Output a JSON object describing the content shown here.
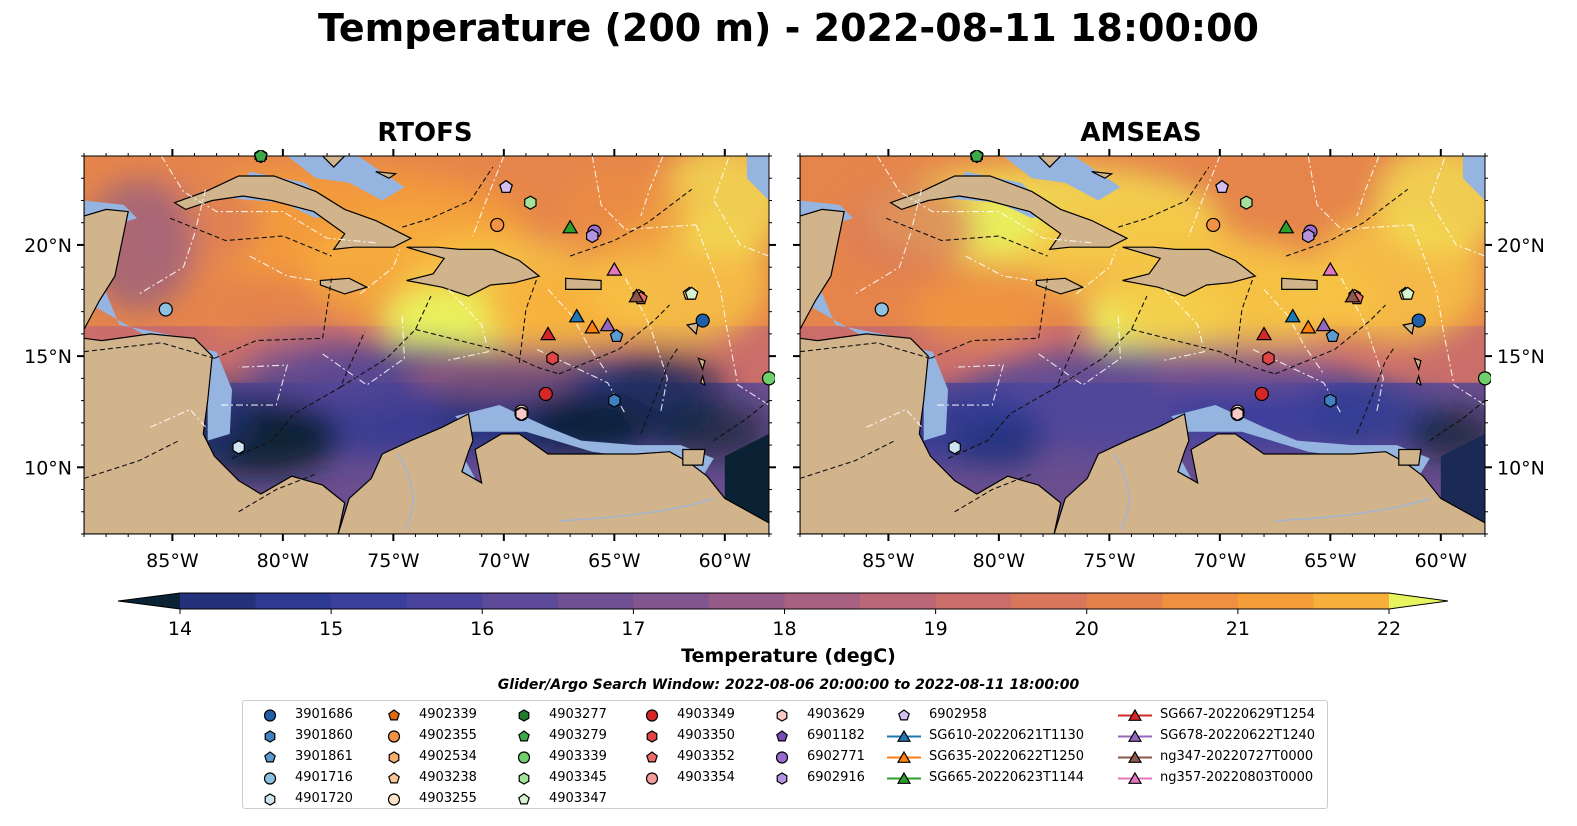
{
  "title": "Temperature (200 m) - 2022-08-11 18:00:00",
  "panels": [
    {
      "title": "RTOFS"
    },
    {
      "title": "AMSEAS"
    }
  ],
  "axes": {
    "lon_ticks": [
      "85°W",
      "80°W",
      "75°W",
      "70°W",
      "65°W",
      "60°W"
    ],
    "lat_ticks": [
      "20°N",
      "15°N",
      "10°N"
    ],
    "lon_range": [
      -89,
      -58
    ],
    "lat_range": [
      7,
      24
    ]
  },
  "colorbar": {
    "label": "Temperature (degC)",
    "ticks": [
      "14",
      "15",
      "16",
      "17",
      "18",
      "19",
      "20",
      "21",
      "22"
    ],
    "range": [
      14,
      22
    ],
    "colors": [
      "#0a2233",
      "#1a2a54",
      "#23327a",
      "#2e3a92",
      "#3a3f9c",
      "#4a449c",
      "#5d4a98",
      "#704f93",
      "#83558e",
      "#965b88",
      "#a96181",
      "#bb6777",
      "#cb6e6a",
      "#d9775c",
      "#e5824c",
      "#ef8f3f",
      "#f59e39",
      "#f8b03c",
      "#f7c545",
      "#f2dd52",
      "#e8f45f"
    ]
  },
  "colors": {
    "land": "#d2b48c",
    "shallow_water": "#96b4e0",
    "deep_water": "#0a2233"
  },
  "legend": {
    "title": "Glider/Argo Search Window: 2022-08-06 20:00:00 to 2022-08-11 18:00:00",
    "columns": [
      [
        {
          "label": "3901686",
          "marker": "circle",
          "color": "#1f5fa8"
        },
        {
          "label": "3901860",
          "marker": "hexagon",
          "color": "#3f80c0"
        },
        {
          "label": "3901861",
          "marker": "pentagon",
          "color": "#5b9bd3"
        },
        {
          "label": "4901716",
          "marker": "circle",
          "color": "#8fc1e3"
        },
        {
          "label": "4901720",
          "marker": "hexagon",
          "color": "#cde4f3"
        }
      ],
      [
        {
          "label": "4902339",
          "marker": "pentagon",
          "color": "#e3690f"
        },
        {
          "label": "4902355",
          "marker": "circle",
          "color": "#f39245"
        },
        {
          "label": "4902534",
          "marker": "hexagon",
          "color": "#f8ad6d"
        },
        {
          "label": "4903238",
          "marker": "pentagon",
          "color": "#fbc895"
        },
        {
          "label": "4903255",
          "marker": "circle",
          "color": "#fde2c6"
        }
      ],
      [
        {
          "label": "4903277",
          "marker": "hexagon",
          "color": "#1e7b2f"
        },
        {
          "label": "4903279",
          "marker": "pentagon",
          "color": "#3da94a"
        },
        {
          "label": "4903339",
          "marker": "circle",
          "color": "#6fcf6a"
        },
        {
          "label": "4903345",
          "marker": "hexagon",
          "color": "#a4e29c"
        },
        {
          "label": "4903347",
          "marker": "pentagon",
          "color": "#d5f3cf"
        }
      ],
      [
        {
          "label": "4903349",
          "marker": "circle",
          "color": "#d62728"
        },
        {
          "label": "4903350",
          "marker": "hexagon",
          "color": "#e04545"
        },
        {
          "label": "4903352",
          "marker": "pentagon",
          "color": "#eb6b6b"
        },
        {
          "label": "4903354",
          "marker": "circle",
          "color": "#f49b9b"
        }
      ],
      [
        {
          "label": "4903629",
          "marker": "hexagon",
          "color": "#f9c8c8"
        },
        {
          "label": "6901182",
          "marker": "pentagon",
          "color": "#7a4bb0"
        },
        {
          "label": "6902771",
          "marker": "circle",
          "color": "#9a6bd0"
        },
        {
          "label": "6902916",
          "marker": "hexagon",
          "color": "#b493e0"
        }
      ],
      [
        {
          "label": "6902958",
          "marker": "pentagon",
          "color": "#d3bff0"
        },
        {
          "label": "SG610-20220621T1130",
          "marker": "triangle",
          "color": "#1f77b4",
          "line": true
        },
        {
          "label": "SG635-20220622T1250",
          "marker": "triangle",
          "color": "#ff7f0e",
          "line": true
        },
        {
          "label": "SG665-20220623T1144",
          "marker": "triangle",
          "color": "#2ca02c",
          "line": true
        }
      ],
      [
        {
          "label": "SG667-20220629T1254",
          "marker": "triangle",
          "color": "#d62728",
          "line": true
        },
        {
          "label": "SG678-20220622T1240",
          "marker": "triangle",
          "color": "#9467bd",
          "line": true
        },
        {
          "label": "ng347-20220727T0000",
          "marker": "triangle",
          "color": "#8c564b",
          "line": true
        },
        {
          "label": "ng357-20220803T0000",
          "marker": "triangle",
          "color": "#e377c2",
          "line": true
        }
      ]
    ]
  },
  "markers": [
    {
      "id": "3901686",
      "lon": -61.0,
      "lat": 16.6
    },
    {
      "id": "3901860",
      "lon": -65.0,
      "lat": 13.0
    },
    {
      "id": "3901861",
      "lon": -64.9,
      "lat": 15.9
    },
    {
      "id": "4901716",
      "lon": -85.3,
      "lat": 17.1
    },
    {
      "id": "4901720",
      "lon": -82.0,
      "lat": 10.9
    },
    {
      "id": "4902339",
      "lon": -81.0,
      "lat": 24.0
    },
    {
      "id": "4902355",
      "lon": -70.3,
      "lat": 20.9
    },
    {
      "id": "4902534",
      "lon": -63.9,
      "lat": 17.7
    },
    {
      "id": "4903238",
      "lon": -61.6,
      "lat": 17.8
    },
    {
      "id": "4903255",
      "lon": -69.2,
      "lat": 12.5
    },
    {
      "id": "4903277",
      "lon": -81.0,
      "lat": 24.0
    },
    {
      "id": "4903279",
      "lon": -81.0,
      "lat": 24.0
    },
    {
      "id": "4903339",
      "lon": -58.0,
      "lat": 14.0
    },
    {
      "id": "4903345",
      "lon": -68.8,
      "lat": 21.9
    },
    {
      "id": "4903347",
      "lon": -61.5,
      "lat": 17.8
    },
    {
      "id": "4903349",
      "lon": -68.1,
      "lat": 13.3
    },
    {
      "id": "4903350",
      "lon": -67.8,
      "lat": 14.9
    },
    {
      "id": "4903352",
      "lon": -63.8,
      "lat": 17.6
    },
    {
      "id": "4903354",
      "lon": -69.2,
      "lat": 12.4
    },
    {
      "id": "4903629",
      "lon": -69.2,
      "lat": 12.4
    },
    {
      "id": "6901182",
      "lon": -69.9,
      "lat": 22.6
    },
    {
      "id": "6902771",
      "lon": -65.9,
      "lat": 20.6
    },
    {
      "id": "6902916",
      "lon": -66.0,
      "lat": 20.4
    },
    {
      "id": "6902958",
      "lon": -69.9,
      "lat": 22.6
    },
    {
      "id": "SG610-20220621T1130",
      "lon": -66.7,
      "lat": 16.8
    },
    {
      "id": "SG635-20220622T1250",
      "lon": -66.0,
      "lat": 16.3
    },
    {
      "id": "SG665-20220623T1144",
      "lon": -67.0,
      "lat": 20.8
    },
    {
      "id": "SG667-20220629T1254",
      "lon": -68.0,
      "lat": 16.0
    },
    {
      "id": "SG678-20220622T1240",
      "lon": -65.3,
      "lat": 16.4
    },
    {
      "id": "ng347-20220727T0000",
      "lon": -64.0,
      "lat": 17.7
    },
    {
      "id": "ng357-20220803T0000",
      "lon": -65.0,
      "lat": 18.9
    }
  ]
}
